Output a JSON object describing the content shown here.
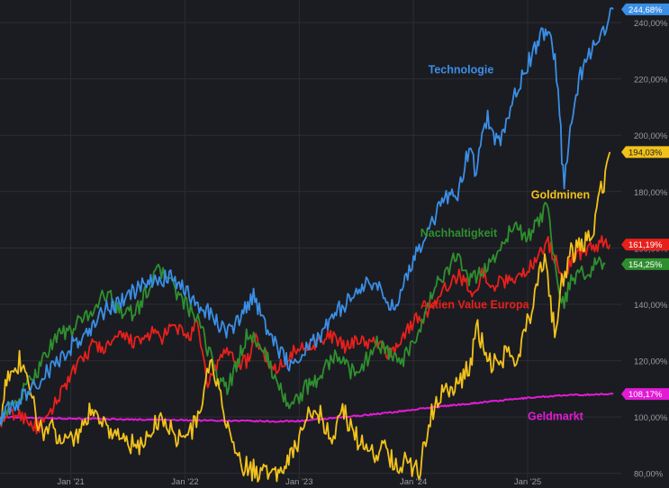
{
  "colors": {
    "background": "#1b1c21",
    "grid": "#2c2d33",
    "axis_text": "#9a9ca3",
    "technologie": "#3a8ee6",
    "goldminen": "#f2c21b",
    "nachhaltigkeit": "#2f8f2f",
    "aktien_value": "#e8201c",
    "geldmarkt": "#e21bd6"
  },
  "chart_data": {
    "type": "line",
    "title": "",
    "xlabel": "",
    "ylabel": "",
    "x_unit": "year",
    "xlim": [
      2020.38,
      2025.82
    ],
    "ylim": [
      78,
      248
    ],
    "y_ticks": [
      80,
      100,
      120,
      140,
      160,
      180,
      200,
      220,
      240
    ],
    "y_tick_labels": [
      "80,00%",
      "100,00%",
      "120,00%",
      "140,00%",
      "160,00%",
      "180,00%",
      "200,00%",
      "220,00%",
      "240,00%"
    ],
    "x_ticks": [
      2021,
      2022,
      2023,
      2024,
      2025
    ],
    "x_tick_labels": [
      "Jan '21",
      "Jan '22",
      "Jan '23",
      "Jan '24",
      "Jan '25"
    ],
    "grid": true,
    "y_axis_side": "right",
    "series": [
      {
        "key": "technologie",
        "name": "Technologie",
        "last_value_label": "244,68%",
        "points": [
          [
            2020.38,
            100
          ],
          [
            2020.5,
            104
          ],
          [
            2020.7,
            112
          ],
          [
            2020.9,
            120
          ],
          [
            2021.0,
            125
          ],
          [
            2021.15,
            130
          ],
          [
            2021.3,
            138
          ],
          [
            2021.45,
            141
          ],
          [
            2021.6,
            146
          ],
          [
            2021.75,
            148
          ],
          [
            2021.85,
            150
          ],
          [
            2021.95,
            146
          ],
          [
            2022.0,
            145
          ],
          [
            2022.1,
            140
          ],
          [
            2022.2,
            138
          ],
          [
            2022.3,
            133
          ],
          [
            2022.4,
            130
          ],
          [
            2022.5,
            136
          ],
          [
            2022.6,
            143
          ],
          [
            2022.65,
            138
          ],
          [
            2022.75,
            129
          ],
          [
            2022.85,
            122
          ],
          [
            2022.95,
            118
          ],
          [
            2023.0,
            122
          ],
          [
            2023.1,
            126
          ],
          [
            2023.2,
            130
          ],
          [
            2023.35,
            138
          ],
          [
            2023.5,
            144
          ],
          [
            2023.6,
            148
          ],
          [
            2023.7,
            145
          ],
          [
            2023.8,
            140
          ],
          [
            2023.85,
            138
          ],
          [
            2023.9,
            148
          ],
          [
            2024.0,
            155
          ],
          [
            2024.1,
            165
          ],
          [
            2024.2,
            172
          ],
          [
            2024.3,
            178
          ],
          [
            2024.4,
            180
          ],
          [
            2024.45,
            190
          ],
          [
            2024.5,
            195
          ],
          [
            2024.55,
            186
          ],
          [
            2024.6,
            200
          ],
          [
            2024.65,
            206
          ],
          [
            2024.7,
            200
          ],
          [
            2024.75,
            197
          ],
          [
            2024.85,
            210
          ],
          [
            2024.95,
            220
          ],
          [
            2025.05,
            230
          ],
          [
            2025.12,
            236
          ],
          [
            2025.18,
            238
          ],
          [
            2025.24,
            226
          ],
          [
            2025.28,
            210
          ],
          [
            2025.3,
            192
          ],
          [
            2025.32,
            181
          ],
          [
            2025.36,
            200
          ],
          [
            2025.45,
            220
          ],
          [
            2025.55,
            230
          ],
          [
            2025.65,
            235
          ],
          [
            2025.7,
            239
          ],
          [
            2025.75,
            244.68
          ]
        ]
      },
      {
        "key": "goldminen",
        "name": "Goldminen",
        "last_value_label": "194,03%",
        "points": [
          [
            2020.38,
            98
          ],
          [
            2020.45,
            118
          ],
          [
            2020.5,
            112
          ],
          [
            2020.55,
            120
          ],
          [
            2020.6,
            114
          ],
          [
            2020.65,
            108
          ],
          [
            2020.7,
            100
          ],
          [
            2020.75,
            95
          ],
          [
            2020.8,
            96
          ],
          [
            2020.9,
            94
          ],
          [
            2021.0,
            92
          ],
          [
            2021.1,
            96
          ],
          [
            2021.2,
            104
          ],
          [
            2021.3,
            97
          ],
          [
            2021.4,
            94
          ],
          [
            2021.5,
            91
          ],
          [
            2021.6,
            88
          ],
          [
            2021.7,
            96
          ],
          [
            2021.8,
            100
          ],
          [
            2021.9,
            94
          ],
          [
            2022.0,
            92
          ],
          [
            2022.1,
            98
          ],
          [
            2022.18,
            112
          ],
          [
            2022.22,
            120
          ],
          [
            2022.3,
            108
          ],
          [
            2022.4,
            94
          ],
          [
            2022.45,
            84
          ],
          [
            2022.55,
            82
          ],
          [
            2022.65,
            80
          ],
          [
            2022.7,
            84
          ],
          [
            2022.78,
            78
          ],
          [
            2022.85,
            83
          ],
          [
            2022.92,
            87
          ],
          [
            2023.0,
            92
          ],
          [
            2023.08,
            100
          ],
          [
            2023.15,
            104
          ],
          [
            2023.22,
            97
          ],
          [
            2023.3,
            93
          ],
          [
            2023.38,
            103
          ],
          [
            2023.45,
            96
          ],
          [
            2023.55,
            90
          ],
          [
            2023.65,
            87
          ],
          [
            2023.75,
            90
          ],
          [
            2023.82,
            84
          ],
          [
            2023.9,
            84
          ],
          [
            2024.0,
            82
          ],
          [
            2024.05,
            81
          ],
          [
            2024.12,
            96
          ],
          [
            2024.2,
            106
          ],
          [
            2024.3,
            110
          ],
          [
            2024.4,
            112
          ],
          [
            2024.5,
            118
          ],
          [
            2024.55,
            132
          ],
          [
            2024.6,
            127
          ],
          [
            2024.67,
            120
          ],
          [
            2024.75,
            118
          ],
          [
            2024.82,
            124
          ],
          [
            2024.9,
            120
          ],
          [
            2024.97,
            130
          ],
          [
            2025.05,
            140
          ],
          [
            2025.1,
            150
          ],
          [
            2025.15,
            155
          ],
          [
            2025.2,
            140
          ],
          [
            2025.25,
            128
          ],
          [
            2025.3,
            148
          ],
          [
            2025.38,
            158
          ],
          [
            2025.45,
            160
          ],
          [
            2025.52,
            162
          ],
          [
            2025.58,
            168
          ],
          [
            2025.63,
            180
          ],
          [
            2025.68,
            185
          ],
          [
            2025.72,
            194.03
          ]
        ]
      },
      {
        "key": "nachhaltigkeit",
        "name": "Nachhaltigkeit",
        "last_value_label": "154,25%",
        "points": [
          [
            2020.38,
            100
          ],
          [
            2020.5,
            104
          ],
          [
            2020.6,
            110
          ],
          [
            2020.7,
            116
          ],
          [
            2020.8,
            124
          ],
          [
            2020.9,
            130
          ],
          [
            2021.0,
            130
          ],
          [
            2021.1,
            135
          ],
          [
            2021.2,
            138
          ],
          [
            2021.3,
            144
          ],
          [
            2021.4,
            140
          ],
          [
            2021.5,
            136
          ],
          [
            2021.6,
            139
          ],
          [
            2021.7,
            148
          ],
          [
            2021.78,
            152
          ],
          [
            2021.86,
            150
          ],
          [
            2021.94,
            143
          ],
          [
            2022.0,
            140
          ],
          [
            2022.1,
            135
          ],
          [
            2022.15,
            130
          ],
          [
            2022.22,
            122
          ],
          [
            2022.3,
            113
          ],
          [
            2022.37,
            110
          ],
          [
            2022.45,
            118
          ],
          [
            2022.55,
            130
          ],
          [
            2022.65,
            126
          ],
          [
            2022.75,
            118
          ],
          [
            2022.85,
            108
          ],
          [
            2022.95,
            104
          ],
          [
            2023.05,
            110
          ],
          [
            2023.15,
            113
          ],
          [
            2023.25,
            119
          ],
          [
            2023.35,
            122
          ],
          [
            2023.45,
            116
          ],
          [
            2023.55,
            118
          ],
          [
            2023.6,
            121
          ],
          [
            2023.68,
            126
          ],
          [
            2023.75,
            125
          ],
          [
            2023.82,
            120
          ],
          [
            2023.9,
            120
          ],
          [
            2024.0,
            125
          ],
          [
            2024.1,
            135
          ],
          [
            2024.2,
            148
          ],
          [
            2024.3,
            151
          ],
          [
            2024.35,
            159
          ],
          [
            2024.4,
            155
          ],
          [
            2024.5,
            148
          ],
          [
            2024.6,
            152
          ],
          [
            2024.7,
            156
          ],
          [
            2024.8,
            163
          ],
          [
            2024.9,
            168
          ],
          [
            2025.0,
            163
          ],
          [
            2025.1,
            170
          ],
          [
            2025.18,
            175
          ],
          [
            2025.22,
            158
          ],
          [
            2025.26,
            148
          ],
          [
            2025.32,
            140
          ],
          [
            2025.38,
            148
          ],
          [
            2025.45,
            152
          ],
          [
            2025.5,
            150
          ],
          [
            2025.6,
            155
          ],
          [
            2025.68,
            154.25
          ]
        ]
      },
      {
        "key": "aktien_value",
        "name": "Aktien Value Europa",
        "last_value_label": "161,19%",
        "points": [
          [
            2020.38,
            99
          ],
          [
            2020.5,
            101
          ],
          [
            2020.6,
            100
          ],
          [
            2020.7,
            96
          ],
          [
            2020.8,
            99
          ],
          [
            2020.9,
            108
          ],
          [
            2021.0,
            115
          ],
          [
            2021.1,
            120
          ],
          [
            2021.2,
            126
          ],
          [
            2021.3,
            124
          ],
          [
            2021.4,
            128
          ],
          [
            2021.5,
            128
          ],
          [
            2021.6,
            126
          ],
          [
            2021.7,
            130
          ],
          [
            2021.8,
            128
          ],
          [
            2021.9,
            132
          ],
          [
            2022.0,
            130
          ],
          [
            2022.05,
            128
          ],
          [
            2022.1,
            134
          ],
          [
            2022.15,
            122
          ],
          [
            2022.2,
            112
          ],
          [
            2022.25,
            116
          ],
          [
            2022.3,
            120
          ],
          [
            2022.38,
            124
          ],
          [
            2022.45,
            119
          ],
          [
            2022.55,
            120
          ],
          [
            2022.62,
            128
          ],
          [
            2022.7,
            122
          ],
          [
            2022.8,
            116
          ],
          [
            2022.9,
            122
          ],
          [
            2023.0,
            124
          ],
          [
            2023.1,
            126
          ],
          [
            2023.2,
            127
          ],
          [
            2023.3,
            129
          ],
          [
            2023.4,
            124
          ],
          [
            2023.5,
            128
          ],
          [
            2023.6,
            126
          ],
          [
            2023.7,
            126
          ],
          [
            2023.8,
            122
          ],
          [
            2023.9,
            128
          ],
          [
            2024.0,
            134
          ],
          [
            2024.1,
            136
          ],
          [
            2024.2,
            140
          ],
          [
            2024.3,
            147
          ],
          [
            2024.4,
            150
          ],
          [
            2024.5,
            146
          ],
          [
            2024.55,
            143
          ],
          [
            2024.6,
            151
          ],
          [
            2024.7,
            147
          ],
          [
            2024.8,
            148
          ],
          [
            2024.9,
            150
          ],
          [
            2025.0,
            152
          ],
          [
            2025.05,
            155
          ],
          [
            2025.1,
            158
          ],
          [
            2025.18,
            162
          ],
          [
            2025.25,
            155
          ],
          [
            2025.3,
            150
          ],
          [
            2025.38,
            155
          ],
          [
            2025.45,
            158
          ],
          [
            2025.55,
            160
          ],
          [
            2025.65,
            162
          ],
          [
            2025.72,
            161.19
          ]
        ]
      },
      {
        "key": "geldmarkt",
        "name": "Geldmarkt",
        "last_value_label": "108,17%",
        "points": [
          [
            2020.38,
            100
          ],
          [
            2020.6,
            99.8
          ],
          [
            2020.8,
            99.6
          ],
          [
            2021.0,
            99.5
          ],
          [
            2021.3,
            99.3
          ],
          [
            2021.6,
            99.1
          ],
          [
            2021.9,
            98.9
          ],
          [
            2022.2,
            98.8
          ],
          [
            2022.5,
            98.6
          ],
          [
            2022.8,
            98.4
          ],
          [
            2023.0,
            98.6
          ],
          [
            2023.2,
            99.2
          ],
          [
            2023.4,
            100.0
          ],
          [
            2023.6,
            100.8
          ],
          [
            2023.8,
            101.6
          ],
          [
            2024.0,
            102.6
          ],
          [
            2024.2,
            103.6
          ],
          [
            2024.4,
            104.4
          ],
          [
            2024.6,
            105.2
          ],
          [
            2024.8,
            106.0
          ],
          [
            2025.0,
            106.8
          ],
          [
            2025.2,
            107.4
          ],
          [
            2025.4,
            107.8
          ],
          [
            2025.6,
            108.0
          ],
          [
            2025.75,
            108.17
          ]
        ]
      }
    ],
    "annotations": [
      {
        "key": "technologie",
        "text": "Technologie",
        "x": 2024.13,
        "y": 222
      },
      {
        "key": "goldminen",
        "text": "Goldminen",
        "x": 2025.03,
        "y": 177.5
      },
      {
        "key": "nachhaltigkeit",
        "text": "Nachhaltigkeit",
        "x": 2024.06,
        "y": 164
      },
      {
        "key": "aktien_value",
        "text": "Aktien Value Europa",
        "x": 2024.06,
        "y": 138.5
      },
      {
        "key": "geldmarkt",
        "text": "Geldmarkt",
        "x": 2025.0,
        "y": 99
      }
    ]
  }
}
